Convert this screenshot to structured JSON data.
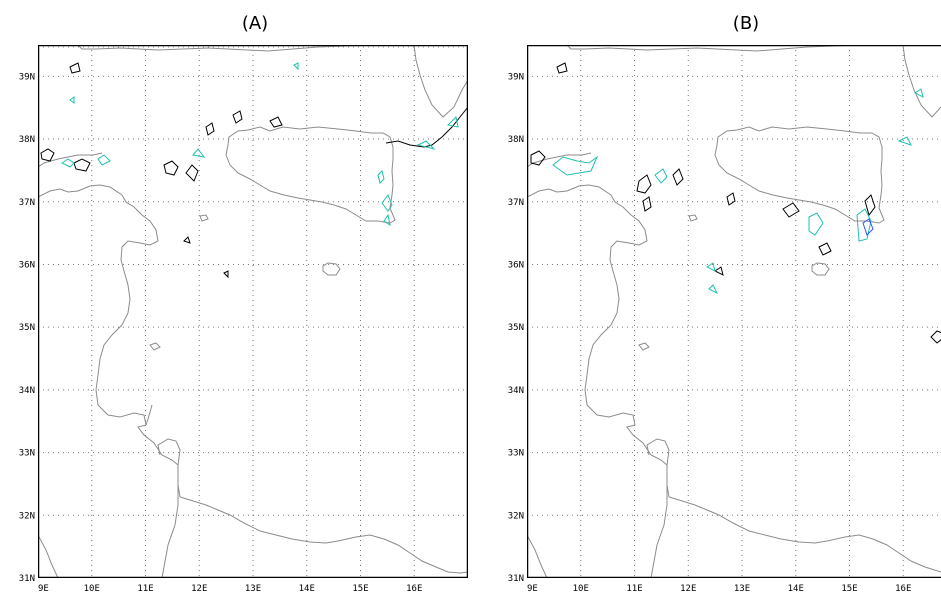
{
  "panels": [
    {
      "title": "(A)"
    },
    {
      "title": "(B)"
    }
  ],
  "map": {
    "lon_ticks": [
      "9E",
      "10E",
      "11E",
      "12E",
      "13E",
      "14E",
      "15E",
      "16E"
    ],
    "lat_ticks": [
      "31N",
      "32N",
      "33N",
      "34N",
      "35N",
      "36N",
      "37N",
      "38N",
      "39N"
    ],
    "lon_range": [
      9,
      17
    ],
    "lat_range": [
      31,
      39.5
    ],
    "grid": "dotted",
    "coastline_color": "#808080",
    "contour_colors": {
      "black": "#000000",
      "cyan": "#20c0b0",
      "blue": "#3050ff"
    }
  }
}
